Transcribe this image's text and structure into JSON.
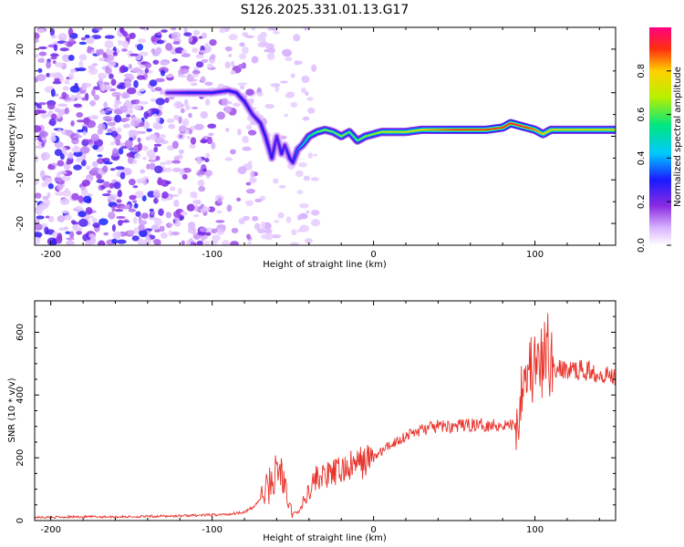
{
  "title": "S126.2025.331.01.13.G17",
  "colors": {
    "snr_line": "#e8332b",
    "axis": "#000000"
  },
  "chart_data": [
    {
      "type": "heatmap",
      "name": "spectrogram",
      "xlabel": "Height of straight line (km)",
      "ylabel": "Frequency (Hz)",
      "xlim": [
        -210,
        150
      ],
      "ylim": [
        -25,
        25
      ],
      "x_ticks": [
        -200,
        -100,
        0,
        100
      ],
      "x_tick_labels": [
        "-200",
        "-100",
        "0",
        "100"
      ],
      "y_ticks": [
        -20,
        -10,
        0,
        10,
        20
      ],
      "y_tick_labels": [
        "-20",
        "-10",
        "0",
        "10",
        "20"
      ],
      "colorbar": {
        "label": "Normalized spectral amplitude",
        "range": [
          0.0,
          1.0
        ],
        "ticks": [
          0.0,
          0.2,
          0.4,
          0.6,
          0.8
        ],
        "tick_labels": [
          "0.0",
          "0.2",
          "0.4",
          "0.6",
          "0.8"
        ]
      },
      "ridge": {
        "x": [
          -128,
          -115,
          -100,
          -90,
          -85,
          -80,
          -75,
          -70,
          -67,
          -63,
          -60,
          -57,
          -55,
          -52,
          -50,
          -47,
          -44,
          -40,
          -35,
          -30,
          -25,
          -20,
          -15,
          -10,
          -5,
          0,
          5,
          10,
          20,
          30,
          40,
          50,
          60,
          70,
          80,
          85,
          90,
          95,
          100,
          105,
          110,
          120,
          130,
          140,
          150
        ],
        "y": [
          10,
          10,
          10,
          10.5,
          10,
          8,
          5,
          3,
          0,
          -5,
          0,
          -4,
          -2,
          -5,
          -6,
          -3,
          -2,
          0,
          1,
          1.5,
          1,
          0,
          1,
          -1,
          0,
          0.5,
          1,
          1,
          1,
          1.5,
          1.5,
          1.5,
          1.5,
          1.5,
          2,
          3,
          2.5,
          2,
          1.5,
          0.5,
          1.5,
          1.5,
          1.5,
          1.5,
          1.5
        ],
        "amplitude": [
          0.25,
          0.3,
          0.3,
          0.3,
          0.3,
          0.3,
          0.28,
          0.3,
          0.3,
          0.3,
          0.25,
          0.3,
          0.25,
          0.3,
          0.3,
          0.35,
          0.45,
          0.55,
          0.6,
          0.65,
          0.6,
          0.65,
          0.6,
          0.6,
          0.65,
          0.65,
          0.7,
          0.75,
          0.75,
          0.8,
          0.85,
          0.9,
          0.9,
          0.9,
          0.9,
          0.95,
          0.95,
          0.9,
          0.85,
          0.8,
          0.8,
          0.8,
          0.8,
          0.8,
          0.8
        ]
      }
    },
    {
      "type": "line",
      "name": "snr",
      "xlabel": "Height of straight line (km)",
      "ylabel": "SNR (10 * v/v)",
      "xlim": [
        -210,
        150
      ],
      "ylim": [
        0,
        700
      ],
      "x_ticks": [
        -200,
        -100,
        0,
        100
      ],
      "x_tick_labels": [
        "-200",
        "-100",
        "0",
        "100"
      ],
      "y_ticks": [
        0,
        200,
        400,
        600
      ],
      "y_tick_labels": [
        "0",
        "200",
        "400",
        "600"
      ],
      "series": [
        {
          "name": "SNR",
          "x": [
            -210,
            -180,
            -150,
            -120,
            -100,
            -90,
            -80,
            -75,
            -70,
            -65,
            -60,
            -57,
            -55,
            -52,
            -50,
            -47,
            -45,
            -40,
            -35,
            -30,
            -25,
            -20,
            -15,
            -10,
            -5,
            0,
            10,
            20,
            30,
            40,
            50,
            60,
            70,
            80,
            88,
            90,
            91,
            92,
            93,
            95,
            100,
            105,
            108,
            110,
            115,
            120,
            130,
            140,
            150
          ],
          "y": [
            10,
            12,
            12,
            15,
            18,
            20,
            28,
            40,
            70,
            110,
            150,
            160,
            100,
            40,
            25,
            25,
            40,
            100,
            140,
            140,
            150,
            160,
            170,
            180,
            190,
            200,
            240,
            270,
            290,
            300,
            300,
            305,
            305,
            305,
            305,
            310,
            400,
            470,
            480,
            490,
            480,
            490,
            560,
            490,
            480,
            480,
            480,
            470,
            460
          ]
        }
      ]
    }
  ]
}
